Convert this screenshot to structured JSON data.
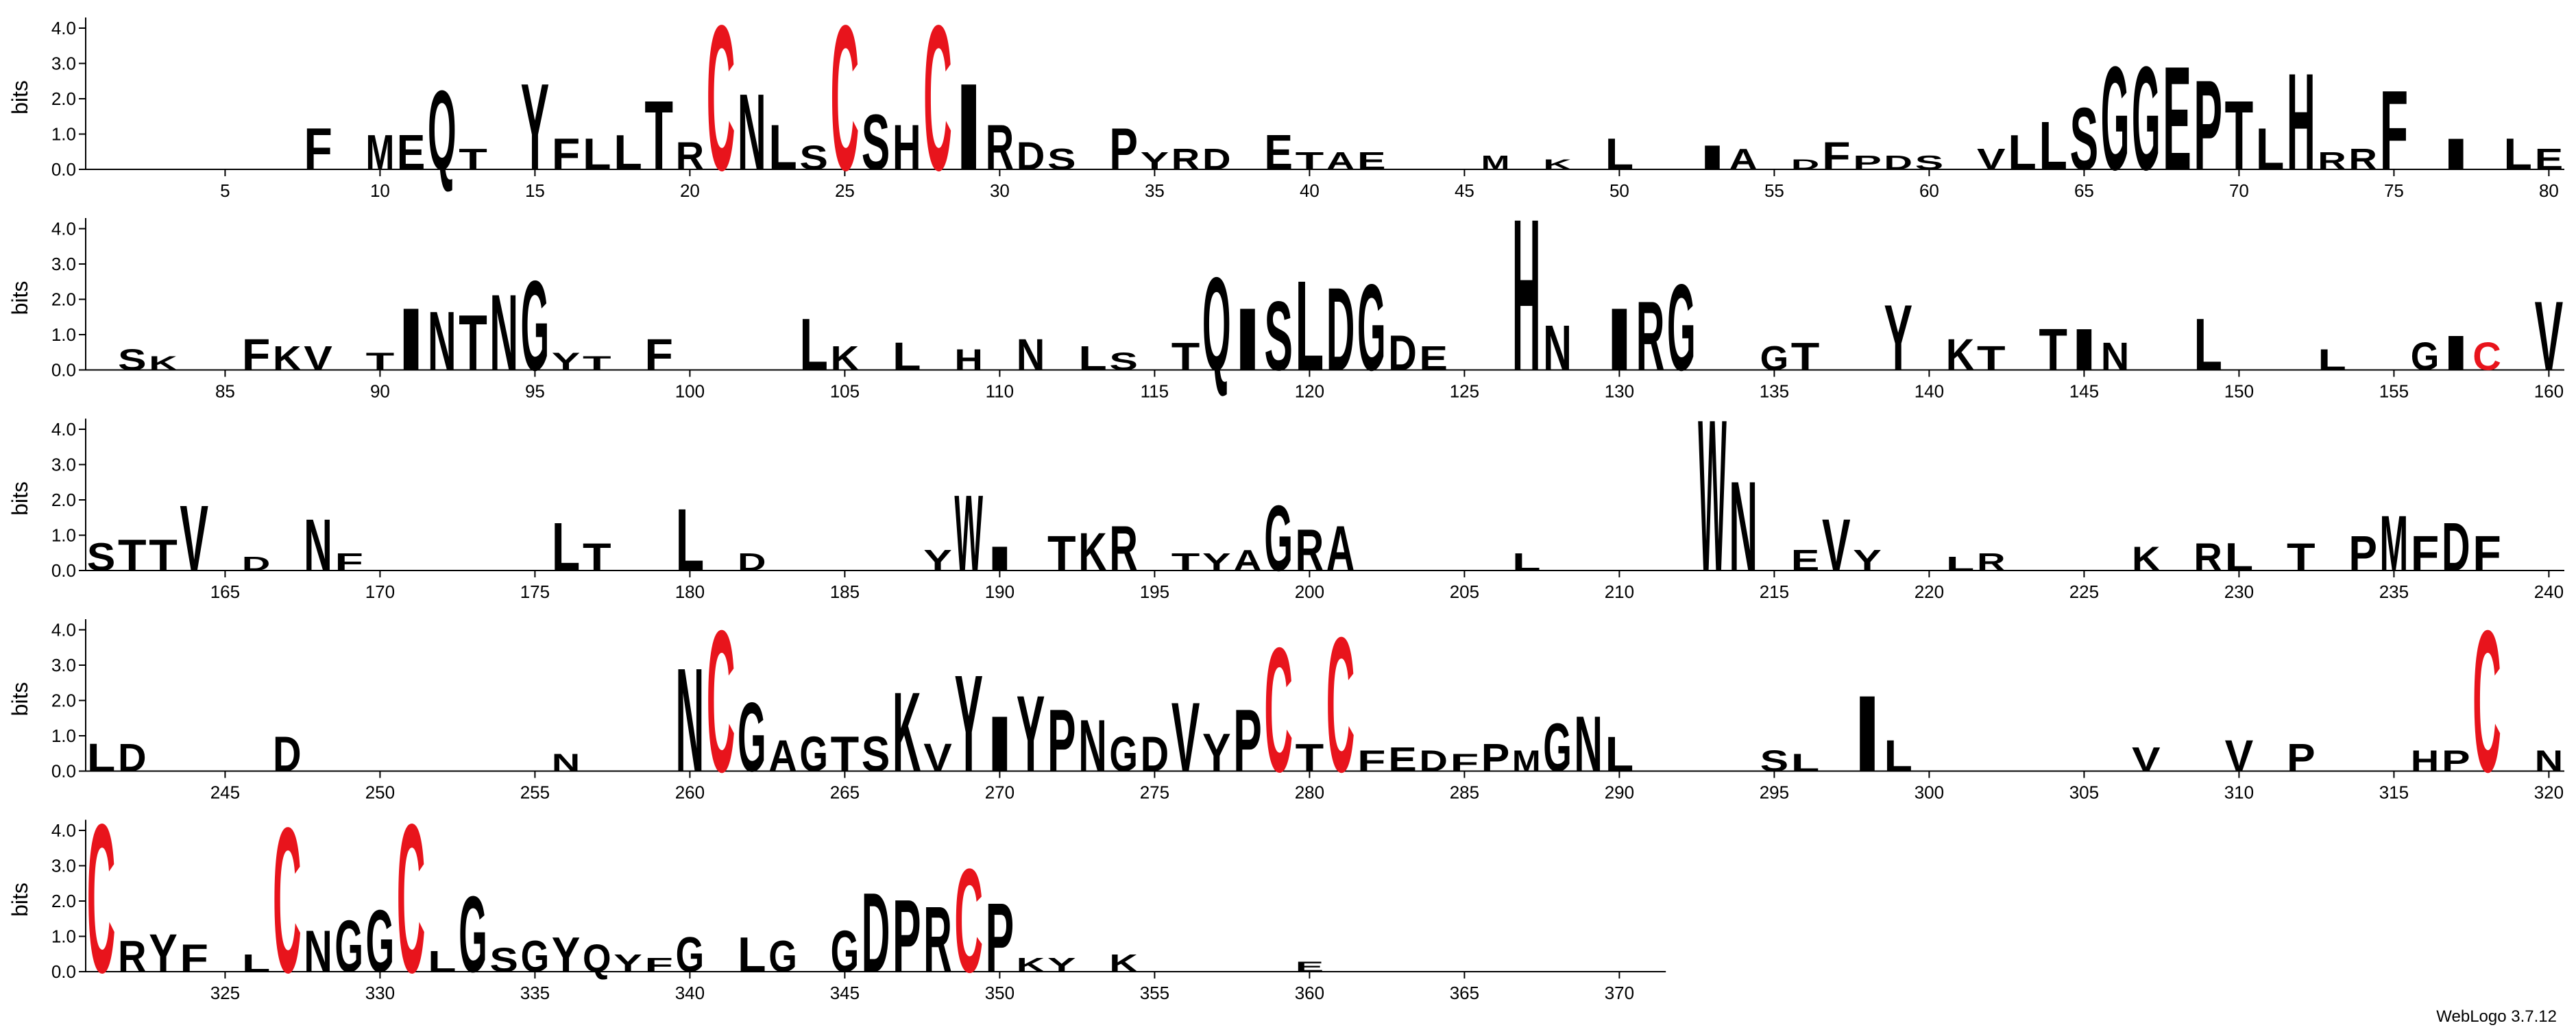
{
  "chart_data": {
    "type": "logo",
    "ylabel": "bits",
    "footer": "WebLogo 3.7.12",
    "ylim": [
      0,
      4.3
    ],
    "yticks": [
      {
        "value": 0,
        "label": "0.0"
      },
      {
        "value": 1,
        "label": "1.0"
      },
      {
        "value": 2,
        "label": "2.0"
      },
      {
        "value": 3,
        "label": "3.0"
      },
      {
        "value": 4,
        "label": "4.0"
      }
    ],
    "xlim": [
      1,
      371
    ],
    "positions_per_row": 80,
    "xticks": [
      5,
      10,
      15,
      20,
      25,
      30,
      35,
      40,
      45,
      50,
      55,
      60,
      65,
      70,
      75,
      80,
      85,
      90,
      95,
      100,
      105,
      110,
      115,
      120,
      125,
      130,
      135,
      140,
      145,
      150,
      155,
      160,
      165,
      170,
      175,
      180,
      185,
      190,
      195,
      200,
      205,
      210,
      215,
      220,
      225,
      230,
      235,
      240,
      245,
      250,
      255,
      260,
      265,
      270,
      275,
      280,
      285,
      290,
      295,
      300,
      305,
      310,
      315,
      320,
      325,
      330,
      335,
      340,
      345,
      350,
      355,
      360,
      365,
      370
    ],
    "color": "#000000",
    "accent_letter": "C",
    "accent_color": "#e8141c",
    "positions": [
      8,
      10,
      11,
      12,
      13,
      15,
      16,
      17,
      18,
      19,
      20,
      21,
      22,
      23,
      24,
      25,
      26,
      27,
      28,
      29,
      30,
      31,
      32,
      34,
      35,
      36,
      37,
      39,
      40,
      41,
      42,
      46,
      48,
      50,
      53,
      54,
      56,
      57,
      58,
      59,
      60,
      62,
      63,
      64,
      65,
      66,
      67,
      68,
      69,
      70,
      71,
      72,
      73,
      74,
      75,
      77,
      79,
      80,
      82,
      83,
      86,
      87,
      88,
      90,
      91,
      92,
      93,
      94,
      95,
      96,
      97,
      99,
      104,
      105,
      107,
      109,
      111,
      113,
      114,
      116,
      117,
      118,
      119,
      120,
      121,
      122,
      123,
      124,
      127,
      128,
      130,
      131,
      132,
      135,
      136,
      139,
      141,
      142,
      144,
      145,
      146,
      149,
      153,
      156,
      157,
      158,
      160,
      161,
      162,
      163,
      164,
      166,
      168,
      169,
      176,
      177,
      180,
      182,
      188,
      189,
      190,
      192,
      193,
      194,
      196,
      197,
      198,
      199,
      200,
      201,
      207,
      213,
      214,
      216,
      217,
      218,
      221,
      222,
      227,
      229,
      230,
      232,
      234,
      235,
      236,
      237,
      238,
      241,
      242,
      247,
      256,
      260,
      261,
      262,
      263,
      264,
      265,
      266,
      267,
      268,
      269,
      270,
      271,
      272,
      273,
      274,
      275,
      276,
      277,
      278,
      279,
      280,
      281,
      282,
      283,
      284,
      285,
      286,
      287,
      288,
      289,
      290,
      295,
      296,
      298,
      299,
      307,
      310,
      312,
      316,
      317,
      318,
      320,
      321,
      322,
      323,
      324,
      326,
      327,
      328,
      329,
      330,
      331,
      332,
      333,
      334,
      335,
      336,
      337,
      338,
      339,
      340,
      342,
      343,
      345,
      346,
      347,
      348,
      349,
      350,
      351,
      352,
      354,
      360
    ],
    "letters": [
      "F",
      "M",
      "E",
      "Q",
      "T",
      "Y",
      "F",
      "L",
      "L",
      "T",
      "R",
      "C",
      "N",
      "L",
      "S",
      "C",
      "S",
      "H",
      "C",
      "I",
      "R",
      "D",
      "S",
      "P",
      "Y",
      "R",
      "D",
      "E",
      "T",
      "A",
      "E",
      "M",
      "K",
      "L",
      "I",
      "A",
      "D",
      "F",
      "P",
      "D",
      "S",
      "V",
      "L",
      "L",
      "S",
      "G",
      "G",
      "E",
      "P",
      "T",
      "L",
      "H",
      "R",
      "R",
      "F",
      "I",
      "L",
      "E",
      "S",
      "K",
      "F",
      "K",
      "V",
      "T",
      "I",
      "N",
      "T",
      "N",
      "G",
      "Y",
      "T",
      "F",
      "L",
      "K",
      "L",
      "H",
      "N",
      "L",
      "S",
      "T",
      "Q",
      "I",
      "S",
      "L",
      "D",
      "G",
      "D",
      "E",
      "H",
      "N",
      "I",
      "R",
      "G",
      "G",
      "T",
      "Y",
      "K",
      "T",
      "T",
      "I",
      "N",
      "L",
      "L",
      "G",
      "I",
      "C",
      "V",
      "S",
      "T",
      "T",
      "V",
      "D",
      "N",
      "F",
      "L",
      "T",
      "L",
      "D",
      "Y",
      "W",
      "I",
      "T",
      "K",
      "R",
      "T",
      "Y",
      "A",
      "G",
      "R",
      "A",
      "L",
      "W",
      "N",
      "E",
      "V",
      "Y",
      "L",
      "R",
      "K",
      "R",
      "L",
      "T",
      "P",
      "M",
      "F",
      "D",
      "F",
      "L",
      "D",
      "D",
      "N",
      "N",
      "C",
      "G",
      "A",
      "G",
      "T",
      "S",
      "K",
      "V",
      "Y",
      "I",
      "Y",
      "P",
      "N",
      "G",
      "D",
      "V",
      "Y",
      "P",
      "C",
      "T",
      "C",
      "F",
      "E",
      "D",
      "F",
      "P",
      "M",
      "G",
      "N",
      "L",
      "S",
      "L",
      "I",
      "L",
      "V",
      "V",
      "P",
      "H",
      "P",
      "C",
      "N",
      "C",
      "R",
      "Y",
      "F",
      "L",
      "C",
      "N",
      "G",
      "G",
      "C",
      "L",
      "G",
      "S",
      "G",
      "Y",
      "Q",
      "Y",
      "F",
      "G",
      "L",
      "G",
      "G",
      "D",
      "P",
      "R",
      "C",
      "P",
      "K",
      "Y",
      "K",
      "E"
    ],
    "values": [
      1.2,
      1.0,
      1.0,
      2.3,
      0.6,
      2.5,
      0.9,
      0.9,
      1.0,
      2.0,
      0.8,
      4.2,
      2.2,
      1.3,
      0.7,
      4.2,
      1.6,
      1.3,
      4.2,
      2.5,
      1.3,
      0.8,
      0.6,
      1.2,
      0.5,
      0.6,
      0.6,
      1.0,
      0.5,
      0.5,
      0.5,
      0.4,
      0.3,
      0.9,
      0.7,
      0.6,
      0.3,
      0.8,
      0.4,
      0.4,
      0.4,
      0.6,
      1.0,
      1.4,
      1.8,
      3.0,
      3.0,
      3.0,
      2.6,
      2.0,
      1.2,
      2.8,
      0.5,
      0.6,
      2.3,
      0.9,
      0.9,
      0.6,
      0.6,
      0.4,
      0.9,
      0.7,
      0.7,
      0.5,
      1.8,
      1.7,
      1.6,
      2.2,
      2.6,
      0.5,
      0.4,
      0.9,
      1.5,
      0.7,
      0.8,
      0.6,
      0.9,
      0.7,
      0.5,
      0.8,
      2.7,
      1.8,
      2.0,
      2.6,
      2.4,
      2.5,
      1.0,
      0.7,
      4.4,
      1.3,
      1.8,
      2.0,
      2.5,
      0.7,
      0.8,
      1.9,
      0.9,
      0.7,
      1.2,
      1.2,
      0.8,
      1.5,
      0.6,
      0.8,
      1.0,
      0.8,
      2.0,
      0.8,
      0.9,
      0.9,
      1.9,
      0.4,
      1.5,
      0.5,
      1.4,
      0.8,
      1.8,
      0.5,
      0.6,
      2.2,
      0.7,
      1.0,
      1.1,
      1.3,
      0.5,
      0.5,
      0.6,
      1.9,
      1.2,
      1.3,
      0.5,
      4.4,
      2.6,
      0.6,
      1.5,
      0.6,
      0.4,
      0.5,
      0.7,
      0.8,
      0.8,
      0.8,
      1.0,
      1.6,
      1.0,
      1.4,
      1.0,
      0.8,
      0.8,
      1.0,
      0.5,
      3.0,
      4.1,
      2.0,
      0.9,
      1.0,
      1.0,
      1.0,
      2.3,
      0.8,
      2.8,
      1.6,
      2.2,
      1.8,
      1.5,
      1.0,
      1.0,
      2.0,
      1.1,
      1.8,
      3.6,
      0.8,
      3.9,
      0.6,
      0.7,
      0.6,
      0.5,
      0.8,
      0.6,
      1.4,
      1.6,
      1.0,
      0.6,
      0.5,
      2.2,
      0.9,
      0.7,
      0.9,
      0.8,
      0.6,
      0.6,
      4.1,
      0.6,
      4.3,
      0.9,
      1.1,
      0.8,
      0.5,
      4.2,
      1.2,
      1.5,
      1.8,
      4.3,
      0.6,
      2.2,
      0.7,
      0.9,
      1.0,
      0.8,
      0.5,
      0.4,
      1.0,
      1.0,
      0.9,
      1.2,
      2.3,
      2.1,
      1.9,
      3.0,
      2.0,
      0.4,
      0.4,
      0.5,
      0.3
    ]
  }
}
